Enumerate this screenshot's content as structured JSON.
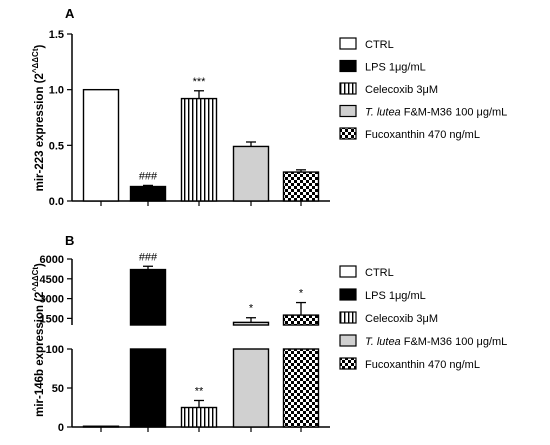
{
  "chart_data": [
    {
      "type": "bar",
      "panel": "A",
      "ylabel": "mir-223 expression (2^ΔΔCt)",
      "ylabel_main": "mir-223 expression (2",
      "ylabel_sup": "^ΔΔCt",
      "ylabel_close": ")",
      "ylim": [
        0,
        1.5
      ],
      "yticks": [
        "0.0",
        "0.5",
        "1.0",
        "1.5"
      ],
      "ytick_values": [
        0,
        0.5,
        1.0,
        1.5
      ],
      "categories": [
        "CTRL",
        "LPS 1µg/mL",
        "Celecoxib 3µM",
        "T. lutea F&M-M36 100 µg/mL",
        "Fucoxanthin 470 ng/mL"
      ],
      "values": [
        1.0,
        0.13,
        0.92,
        0.49,
        0.26
      ],
      "errors": [
        0,
        0.01,
        0.07,
        0.04,
        0.02
      ],
      "annotations": [
        "",
        "###",
        "***",
        "",
        ""
      ],
      "legend": [
        {
          "italic": "",
          "text": "CTRL",
          "pattern": "white"
        },
        {
          "italic": "",
          "text": "LPS 1μg/mL",
          "pattern": "black"
        },
        {
          "italic": "",
          "text": "Celecoxib 3μM",
          "pattern": "vstripes"
        },
        {
          "italic": "T. lutea",
          "text": " F&M-M36 100 μg/mL",
          "pattern": "gray"
        },
        {
          "italic": "",
          "text": "Fucoxanthin 470 ng/mL",
          "pattern": "checker"
        }
      ]
    },
    {
      "type": "bar",
      "panel": "B",
      "ylabel": "mir-146b expression (2^ΔΔCt)",
      "ylabel_main": "mir-146b expression (2",
      "ylabel_sup": "^ΔΔCt",
      "ylabel_close": ")",
      "broken_axis": {
        "lower": [
          0,
          100
        ],
        "upper": [
          1000,
          6000
        ]
      },
      "yticks_upper": [
        "1500",
        "3000",
        "4500",
        "6000"
      ],
      "ytick_upper_values": [
        1500,
        3000,
        4500,
        6000
      ],
      "yticks_lower": [
        "0",
        "50",
        "100"
      ],
      "ytick_lower_values": [
        0,
        50,
        100
      ],
      "categories": [
        "CTRL",
        "LPS 1µg/mL",
        "Celecoxib 3µM",
        "T. lutea F&M-M36 100 µg/mL",
        "Fucoxanthin 470 ng/mL"
      ],
      "values": [
        1,
        5200,
        25,
        1200,
        1750
      ],
      "errors": [
        0,
        250,
        9,
        350,
        950
      ],
      "annotations": [
        "",
        "###",
        "**",
        "*",
        "*"
      ],
      "legend": [
        {
          "italic": "",
          "text": "CTRL",
          "pattern": "white"
        },
        {
          "italic": "",
          "text": "LPS 1μg/mL",
          "pattern": "black"
        },
        {
          "italic": "",
          "text": "Celecoxib 3μM",
          "pattern": "vstripes"
        },
        {
          "italic": "T. lutea",
          "text": " F&M-M36 100 μg/mL",
          "pattern": "gray"
        },
        {
          "italic": "",
          "text": "Fucoxanthin 470 ng/mL",
          "pattern": "checker"
        }
      ]
    }
  ]
}
